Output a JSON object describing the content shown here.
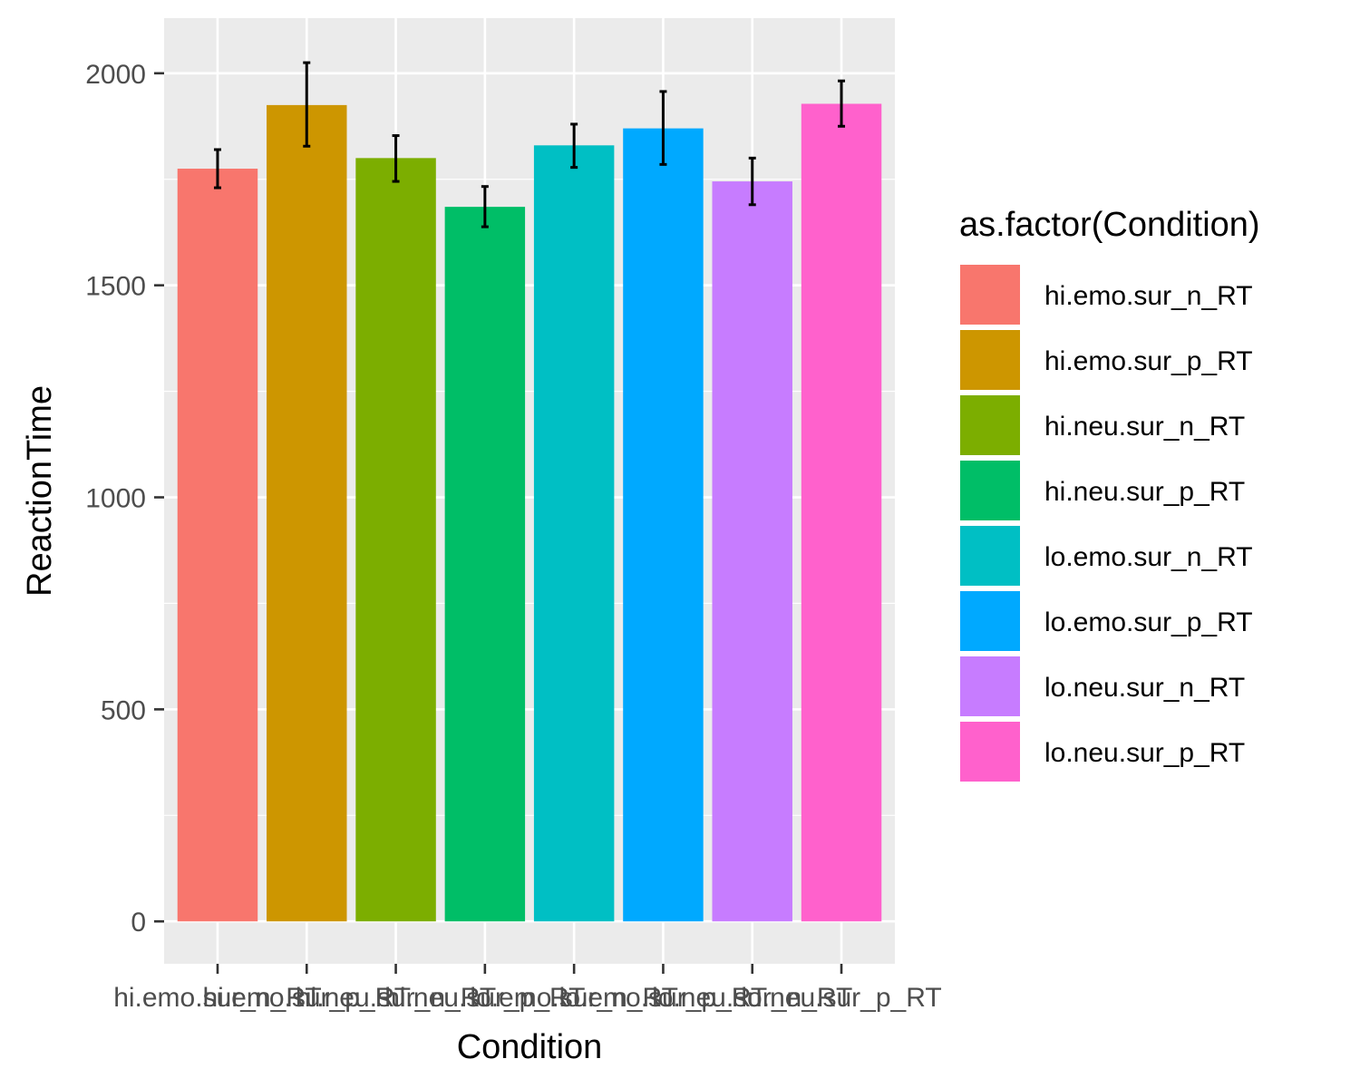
{
  "chart_data": {
    "type": "bar",
    "title": "",
    "xlabel": "Condition",
    "ylabel": "ReactionTime",
    "ylim": [
      -100,
      2130
    ],
    "yticks": [
      0,
      500,
      1000,
      1500,
      2000
    ],
    "grid": true,
    "legend_position": "right",
    "legend_title": "as.factor(Condition)",
    "categories": [
      "hi.emo.sur_n_RT",
      "hi.emo.sur_p_RT",
      "hi.neu.sur_n_RT",
      "hi.neu.sur_p_RT",
      "lo.emo.sur_n_RT",
      "lo.emo.sur_p_RT",
      "lo.neu.sur_n_RT",
      "lo.neu.sur_p_RT"
    ],
    "values": [
      1775,
      1925,
      1800,
      1685,
      1830,
      1870,
      1745,
      1928
    ],
    "error_low": [
      1730,
      1828,
      1745,
      1638,
      1778,
      1785,
      1690,
      1875
    ],
    "error_high": [
      1820,
      2025,
      1853,
      1733,
      1880,
      1957,
      1800,
      1982
    ],
    "colors": [
      "#F8766D",
      "#CD9600",
      "#7CAE00",
      "#00BE67",
      "#00BFC4",
      "#00A9FF",
      "#C77CFF",
      "#FF61CC"
    ]
  }
}
